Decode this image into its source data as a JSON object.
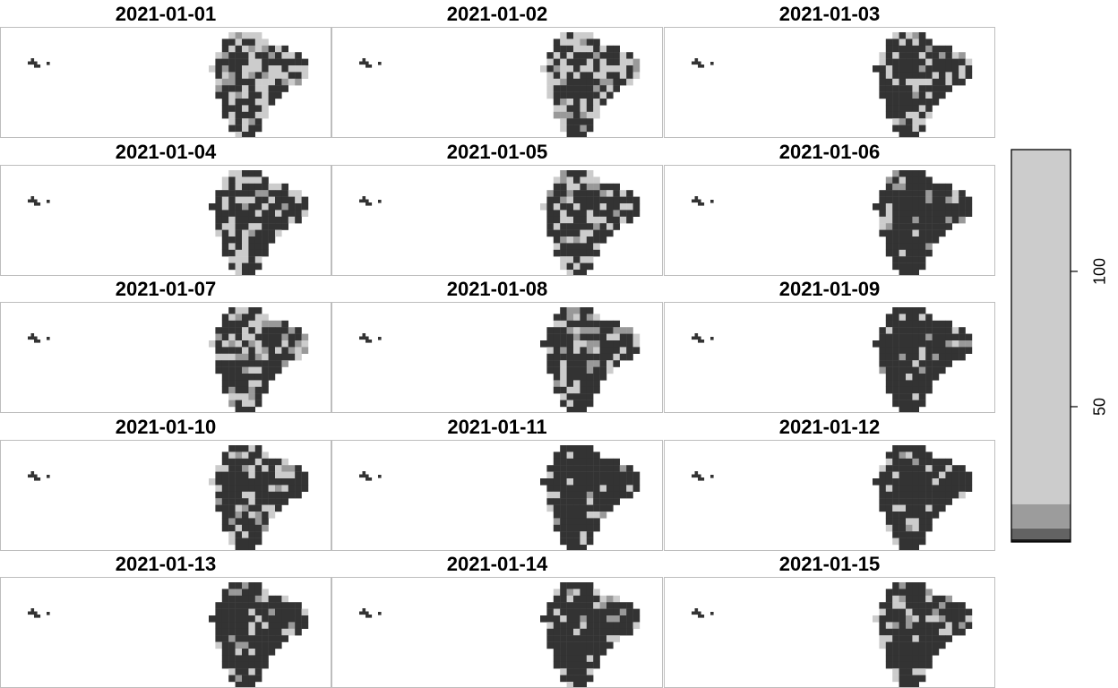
{
  "chart_data": {
    "type": "heatmap",
    "panels": [
      {
        "title": "2021-01-01",
        "mix": [
          0.5,
          0.36,
          0.14
        ]
      },
      {
        "title": "2021-01-02",
        "mix": [
          0.58,
          0.34,
          0.08
        ]
      },
      {
        "title": "2021-01-03",
        "mix": [
          0.7,
          0.24,
          0.06
        ]
      },
      {
        "title": "2021-01-04",
        "mix": [
          0.66,
          0.26,
          0.08
        ]
      },
      {
        "title": "2021-01-05",
        "mix": [
          0.62,
          0.26,
          0.12
        ]
      },
      {
        "title": "2021-01-06",
        "mix": [
          0.8,
          0.1,
          0.1
        ]
      },
      {
        "title": "2021-01-07",
        "mix": [
          0.66,
          0.2,
          0.14
        ]
      },
      {
        "title": "2021-01-08",
        "mix": [
          0.74,
          0.14,
          0.12
        ]
      },
      {
        "title": "2021-01-09",
        "mix": [
          0.88,
          0.08,
          0.04
        ]
      },
      {
        "title": "2021-01-10",
        "mix": [
          0.7,
          0.22,
          0.08
        ]
      },
      {
        "title": "2021-01-11",
        "mix": [
          0.86,
          0.1,
          0.04
        ]
      },
      {
        "title": "2021-01-12",
        "mix": [
          0.86,
          0.1,
          0.04
        ]
      },
      {
        "title": "2021-01-13",
        "mix": [
          0.82,
          0.14,
          0.04
        ]
      },
      {
        "title": "2021-01-14",
        "mix": [
          0.84,
          0.1,
          0.06
        ]
      },
      {
        "title": "2021-01-15",
        "mix": [
          0.74,
          0.18,
          0.08
        ]
      }
    ],
    "legend": {
      "range": [
        0,
        145
      ],
      "ticks": [
        50,
        100
      ],
      "bands": [
        {
          "from": 0,
          "to": 1,
          "color": "#1a1a1a"
        },
        {
          "from": 1,
          "to": 5,
          "color": "#636363"
        },
        {
          "from": 5,
          "to": 14,
          "color": "#9c9c9c"
        },
        {
          "from": 14,
          "to": 145,
          "color": "#cccccc"
        }
      ]
    },
    "colors": {
      "dark": "#333333",
      "light": "#cccccc",
      "mid": "#999999",
      "frame": "#bdbdbd"
    }
  }
}
